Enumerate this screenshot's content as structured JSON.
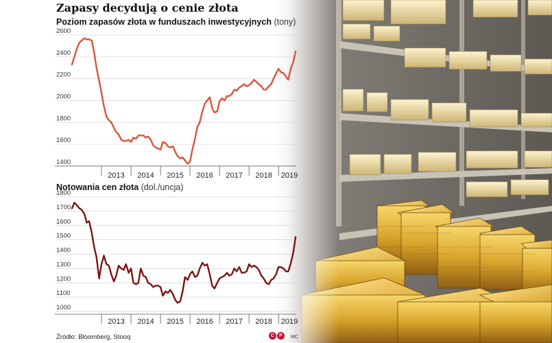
{
  "title": "Zapasy decydują o cenie złota",
  "source": "Źródło: Bloomberg, Stooq",
  "logo_letters": [
    "C",
    "P"
  ],
  "author": "MC",
  "chart_data": [
    {
      "type": "line",
      "title": "Poziom zapasów złota w funduszach inwestycyjnych",
      "unit": "(tony)",
      "ylim": [
        1400,
        2600
      ],
      "yticks": [
        1400,
        1600,
        1800,
        2000,
        2200,
        2400,
        2600
      ],
      "xlim": [
        2012.0,
        2019.6
      ],
      "xtick_labels": [
        "2013",
        "2014",
        "2015",
        "2016",
        "2017",
        "2018",
        "2019"
      ],
      "year_dividers": [
        2013,
        2014,
        2015,
        2016,
        2017,
        2018,
        2019
      ],
      "color": "#d9533b",
      "points": [
        [
          2012.0,
          2330
        ],
        [
          2012.08,
          2400
        ],
        [
          2012.17,
          2480
        ],
        [
          2012.25,
          2530
        ],
        [
          2012.33,
          2550
        ],
        [
          2012.42,
          2570
        ],
        [
          2012.5,
          2560
        ],
        [
          2012.58,
          2560
        ],
        [
          2012.67,
          2550
        ],
        [
          2012.75,
          2440
        ],
        [
          2012.83,
          2300
        ],
        [
          2012.92,
          2180
        ],
        [
          2013.0,
          2070
        ],
        [
          2013.08,
          1950
        ],
        [
          2013.17,
          1850
        ],
        [
          2013.25,
          1820
        ],
        [
          2013.33,
          1800
        ],
        [
          2013.42,
          1750
        ],
        [
          2013.5,
          1710
        ],
        [
          2013.58,
          1690
        ],
        [
          2013.67,
          1640
        ],
        [
          2013.75,
          1630
        ],
        [
          2013.83,
          1630
        ],
        [
          2013.92,
          1640
        ],
        [
          2014.0,
          1620
        ],
        [
          2014.08,
          1660
        ],
        [
          2014.17,
          1650
        ],
        [
          2014.25,
          1680
        ],
        [
          2014.33,
          1680
        ],
        [
          2014.42,
          1680
        ],
        [
          2014.5,
          1660
        ],
        [
          2014.58,
          1670
        ],
        [
          2014.67,
          1640
        ],
        [
          2014.75,
          1590
        ],
        [
          2014.83,
          1570
        ],
        [
          2014.92,
          1560
        ],
        [
          2015.0,
          1550
        ],
        [
          2015.08,
          1620
        ],
        [
          2015.17,
          1610
        ],
        [
          2015.25,
          1580
        ],
        [
          2015.33,
          1570
        ],
        [
          2015.42,
          1580
        ],
        [
          2015.5,
          1530
        ],
        [
          2015.58,
          1490
        ],
        [
          2015.67,
          1470
        ],
        [
          2015.75,
          1480
        ],
        [
          2015.83,
          1450
        ],
        [
          2015.92,
          1420
        ],
        [
          2016.0,
          1440
        ],
        [
          2016.08,
          1550
        ],
        [
          2016.17,
          1650
        ],
        [
          2016.25,
          1760
        ],
        [
          2016.33,
          1800
        ],
        [
          2016.42,
          1900
        ],
        [
          2016.5,
          1970
        ],
        [
          2016.58,
          2000
        ],
        [
          2016.67,
          2030
        ],
        [
          2016.75,
          1930
        ],
        [
          2016.83,
          1890
        ],
        [
          2016.92,
          1900
        ],
        [
          2017.0,
          1990
        ],
        [
          2017.08,
          2020
        ],
        [
          2017.17,
          2000
        ],
        [
          2017.25,
          2040
        ],
        [
          2017.33,
          2040
        ],
        [
          2017.42,
          2060
        ],
        [
          2017.5,
          2100
        ],
        [
          2017.58,
          2090
        ],
        [
          2017.67,
          2120
        ],
        [
          2017.75,
          2130
        ],
        [
          2017.83,
          2150
        ],
        [
          2017.92,
          2130
        ],
        [
          2018.0,
          2140
        ],
        [
          2018.08,
          2160
        ],
        [
          2018.17,
          2190
        ],
        [
          2018.25,
          2170
        ],
        [
          2018.33,
          2150
        ],
        [
          2018.42,
          2130
        ],
        [
          2018.5,
          2100
        ],
        [
          2018.58,
          2100
        ],
        [
          2018.67,
          2130
        ],
        [
          2018.75,
          2150
        ],
        [
          2018.83,
          2200
        ],
        [
          2018.92,
          2250
        ],
        [
          2019.0,
          2290
        ],
        [
          2019.08,
          2260
        ],
        [
          2019.17,
          2250
        ],
        [
          2019.25,
          2220
        ],
        [
          2019.33,
          2190
        ],
        [
          2019.42,
          2300
        ],
        [
          2019.5,
          2350
        ],
        [
          2019.58,
          2450
        ]
      ]
    },
    {
      "type": "line",
      "title": "Notowania cen złota",
      "unit": "(dol./uncja)",
      "ylim": [
        1000,
        1800
      ],
      "yticks": [
        1000,
        1100,
        1200,
        1300,
        1400,
        1500,
        1600,
        1700,
        1800
      ],
      "xlim": [
        2012.0,
        2019.6
      ],
      "xtick_labels": [
        "2013",
        "2014",
        "2015",
        "2016",
        "2017",
        "2018",
        "2019"
      ],
      "year_dividers": [
        2013,
        2014,
        2015,
        2016,
        2017,
        2018,
        2019
      ],
      "color": "#7a1414",
      "points": [
        [
          2012.0,
          1720
        ],
        [
          2012.08,
          1760
        ],
        [
          2012.17,
          1740
        ],
        [
          2012.25,
          1720
        ],
        [
          2012.33,
          1710
        ],
        [
          2012.42,
          1680
        ],
        [
          2012.5,
          1620
        ],
        [
          2012.58,
          1630
        ],
        [
          2012.67,
          1550
        ],
        [
          2012.75,
          1450
        ],
        [
          2012.83,
          1380
        ],
        [
          2012.92,
          1230
        ],
        [
          2013.0,
          1330
        ],
        [
          2013.08,
          1390
        ],
        [
          2013.17,
          1330
        ],
        [
          2013.25,
          1320
        ],
        [
          2013.33,
          1260
        ],
        [
          2013.42,
          1210
        ],
        [
          2013.5,
          1250
        ],
        [
          2013.58,
          1320
        ],
        [
          2013.67,
          1300
        ],
        [
          2013.75,
          1290
        ],
        [
          2013.83,
          1330
        ],
        [
          2013.92,
          1270
        ],
        [
          2014.0,
          1300
        ],
        [
          2014.08,
          1200
        ],
        [
          2014.17,
          1190
        ],
        [
          2014.25,
          1200
        ],
        [
          2014.33,
          1300
        ],
        [
          2014.42,
          1250
        ],
        [
          2014.5,
          1240
        ],
        [
          2014.58,
          1200
        ],
        [
          2014.67,
          1190
        ],
        [
          2014.75,
          1170
        ],
        [
          2014.83,
          1180
        ],
        [
          2014.92,
          1180
        ],
        [
          2015.0,
          1170
        ],
        [
          2015.08,
          1110
        ],
        [
          2015.17,
          1140
        ],
        [
          2015.25,
          1130
        ],
        [
          2015.33,
          1150
        ],
        [
          2015.42,
          1120
        ],
        [
          2015.5,
          1080
        ],
        [
          2015.58,
          1060
        ],
        [
          2015.67,
          1070
        ],
        [
          2015.75,
          1140
        ],
        [
          2015.83,
          1240
        ],
        [
          2015.92,
          1220
        ],
        [
          2016.0,
          1260
        ],
        [
          2016.08,
          1280
        ],
        [
          2016.17,
          1240
        ],
        [
          2016.25,
          1250
        ],
        [
          2016.33,
          1300
        ],
        [
          2016.42,
          1340
        ],
        [
          2016.5,
          1320
        ],
        [
          2016.58,
          1330
        ],
        [
          2016.67,
          1260
        ],
        [
          2016.75,
          1180
        ],
        [
          2016.83,
          1160
        ],
        [
          2016.92,
          1200
        ],
        [
          2017.0,
          1230
        ],
        [
          2017.08,
          1240
        ],
        [
          2017.17,
          1250
        ],
        [
          2017.25,
          1270
        ],
        [
          2017.33,
          1250
        ],
        [
          2017.42,
          1260
        ],
        [
          2017.5,
          1300
        ],
        [
          2017.58,
          1280
        ],
        [
          2017.67,
          1310
        ],
        [
          2017.75,
          1270
        ],
        [
          2017.83,
          1270
        ],
        [
          2017.92,
          1280
        ],
        [
          2018.0,
          1330
        ],
        [
          2018.08,
          1310
        ],
        [
          2018.17,
          1320
        ],
        [
          2018.25,
          1310
        ],
        [
          2018.33,
          1290
        ],
        [
          2018.42,
          1250
        ],
        [
          2018.5,
          1230
        ],
        [
          2018.58,
          1200
        ],
        [
          2018.67,
          1190
        ],
        [
          2018.75,
          1220
        ],
        [
          2018.83,
          1230
        ],
        [
          2018.92,
          1260
        ],
        [
          2019.0,
          1310
        ],
        [
          2019.08,
          1310
        ],
        [
          2019.17,
          1300
        ],
        [
          2019.25,
          1280
        ],
        [
          2019.33,
          1280
        ],
        [
          2019.42,
          1340
        ],
        [
          2019.5,
          1410
        ],
        [
          2019.58,
          1520
        ]
      ]
    }
  ]
}
